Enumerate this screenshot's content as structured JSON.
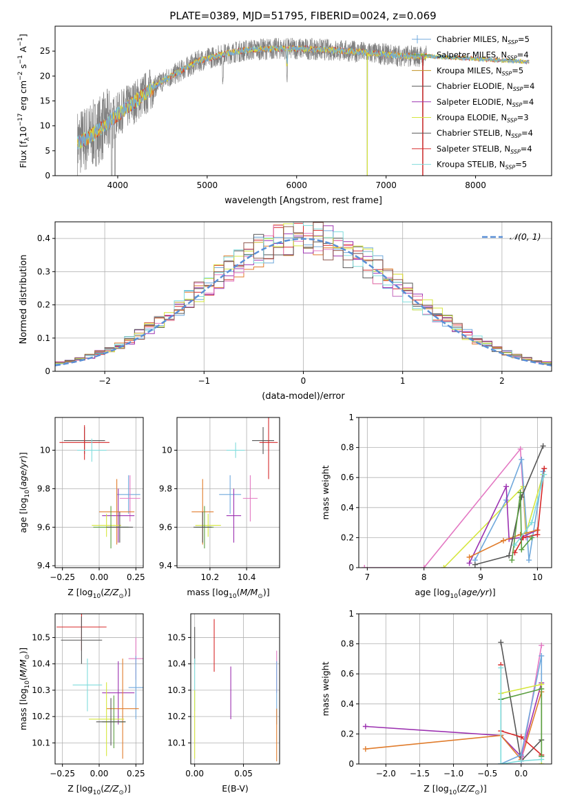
{
  "figure": {
    "title": "PLATE=0389, MJD=51795, FIBERID=0024, z=0.069"
  },
  "colors": {
    "C0": "#6fa8dc",
    "C1": "#e07b2a",
    "C2": "#5a9e3f",
    "C3": "#d62728",
    "C4": "#9b30b0",
    "C5": "#8c564b",
    "C6": "#e377c2",
    "C7": "#555555",
    "C8": "#d5e63c",
    "C9": "#7fdcdc",
    "spectrum_data": "#808080",
    "grid": "#b0b0b0",
    "gauss": "#5a8fd6",
    "legend_miles_chabrier": "#6fa8dc",
    "legend_miles_salpeter": "#5a9e3f",
    "legend_miles_kroupa": "#c09020"
  },
  "chart_data": [
    {
      "id": "spectrum",
      "type": "line",
      "title": "PLATE=0389, MJD=51795, FIBERID=0024, z=0.069",
      "xlabel": "wavelength [Angstrom, rest frame]",
      "ylabel": "Flux [f_λ 10^-17 erg cm^-2 s^-1 A^-1]",
      "xlim": [
        3300,
        8850
      ],
      "ylim": [
        0,
        30
      ],
      "xticks": [
        4000,
        5000,
        6000,
        7000,
        8000
      ],
      "yticks": [
        0,
        5,
        10,
        15,
        20,
        25
      ],
      "grid": false,
      "legend_position": "top-right",
      "legend": [
        {
          "label": "Chabrier MILES, N",
          "sub": "SSP",
          "tail": "=5",
          "color": "#6fa8dc"
        },
        {
          "label": "Salpeter MILES, N",
          "sub": "SSP",
          "tail": "=4",
          "color": "#5a9e3f"
        },
        {
          "label": "Kroupa MILES, N",
          "sub": "SSP",
          "tail": "=5",
          "color": "#c09020"
        },
        {
          "label": "Chabrier ELODIE, N",
          "sub": "SSP",
          "tail": "=4",
          "color": "#555555"
        },
        {
          "label": "Salpeter ELODIE, N",
          "sub": "SSP",
          "tail": "=4",
          "color": "#9b30b0"
        },
        {
          "label": "Kroupa ELODIE, N",
          "sub": "SSP",
          "tail": "=3",
          "color": "#d5e63c"
        },
        {
          "label": "Chabrier STELIB, N",
          "sub": "SSP",
          "tail": "=4",
          "color": "#555555"
        },
        {
          "label": "Salpeter STELIB, N",
          "sub": "SSP",
          "tail": "=4",
          "color": "#d62728"
        },
        {
          "label": "Kroupa STELIB, N",
          "sub": "SSP",
          "tail": "=5",
          "color": "#7fdcdc"
        }
      ],
      "continuum": [
        [
          3550,
          6.5
        ],
        [
          3700,
          8
        ],
        [
          3850,
          10
        ],
        [
          3950,
          11.5
        ],
        [
          4050,
          13
        ],
        [
          4200,
          15
        ],
        [
          4350,
          17
        ],
        [
          4500,
          19
        ],
        [
          4700,
          21
        ],
        [
          4900,
          23
        ],
        [
          5100,
          24
        ],
        [
          5300,
          24.8
        ],
        [
          5500,
          25.3
        ],
        [
          5800,
          25.5
        ],
        [
          6000,
          25.5
        ],
        [
          6300,
          25.3
        ],
        [
          6600,
          25
        ],
        [
          6900,
          24.5
        ],
        [
          7200,
          24
        ],
        [
          7450,
          24
        ]
      ],
      "models_end": [
        7450,
        8600
      ],
      "deep_drops": [
        [
          6790,
          0
        ],
        [
          7410,
          0
        ]
      ]
    },
    {
      "id": "residual_hist",
      "type": "bar",
      "xlabel": "(data-model)/error",
      "ylabel": "Normed distribution",
      "xlim": [
        -2.5,
        2.5
      ],
      "ylim": [
        0,
        0.45
      ],
      "xticks": [
        -2,
        -1,
        0,
        1,
        2
      ],
      "xtick_labels": [
        "−2",
        "−1",
        "0",
        "1",
        "2"
      ],
      "yticks": [
        0.0,
        0.1,
        0.2,
        0.3,
        0.4
      ],
      "grid": true,
      "bin_width": 0.1,
      "legend_position": "top-right",
      "legend": [
        {
          "label": "𝒩(0, 1)",
          "style": "dashed",
          "color": "#5a8fd6"
        }
      ],
      "gaussian": {
        "mu": 0,
        "sigma": 1
      }
    },
    {
      "id": "age_vs_Z",
      "type": "scatter",
      "xlabel": "Z [log10(Z/Z☉)]",
      "ylabel": "age  [log10(age/yr)]",
      "xlim": [
        -0.3,
        0.3
      ],
      "ylim": [
        9.39,
        10.17
      ],
      "xticks": [
        -0.25,
        0.0,
        0.25
      ],
      "xtick_labels": [
        "−0.25",
        "0.00",
        "0.25"
      ],
      "yticks": [
        9.4,
        9.6,
        9.8,
        10.0
      ],
      "grid": true,
      "errorbars": [
        {
          "x": -0.1,
          "y": 10.05,
          "xerr": 0.14,
          "yerr": 0.07,
          "color": "#555555"
        },
        {
          "x": -0.1,
          "y": 10.04,
          "xerr": 0.17,
          "yerr": 0.09,
          "color": "#d62728"
        },
        {
          "x": -0.05,
          "y": 10.0,
          "xerr": 0.1,
          "yerr": 0.06,
          "color": "#7fdcdc"
        },
        {
          "x": 0.2,
          "y": 9.77,
          "xerr": 0.08,
          "yerr": 0.1,
          "color": "#6fa8dc"
        },
        {
          "x": 0.21,
          "y": 9.75,
          "xerr": 0.07,
          "yerr": 0.12,
          "color": "#e377c2"
        },
        {
          "x": 0.13,
          "y": 9.66,
          "xerr": 0.11,
          "yerr": 0.14,
          "color": "#9b30b0"
        },
        {
          "x": 0.12,
          "y": 9.68,
          "xerr": 0.12,
          "yerr": 0.17,
          "color": "#e07b2a"
        },
        {
          "x": 0.05,
          "y": 9.61,
          "xerr": 0.1,
          "yerr": 0.06,
          "color": "#d5e63c"
        },
        {
          "x": 0.08,
          "y": 9.6,
          "xerr": 0.12,
          "yerr": 0.11,
          "color": "#5a9e3f"
        },
        {
          "x": 0.14,
          "y": 9.6,
          "xerr": 0.09,
          "yerr": 0.08,
          "color": "#555555"
        }
      ]
    },
    {
      "id": "age_vs_mass",
      "type": "scatter",
      "xlabel": "mass [log10(M/M☉)]",
      "xlim": [
        10.02,
        10.58
      ],
      "ylim": [
        9.39,
        10.17
      ],
      "xticks": [
        10.2,
        10.4
      ],
      "yticks": [
        9.4,
        9.6,
        9.8,
        10.0
      ],
      "grid": true,
      "errorbars": [
        {
          "x": 10.49,
          "y": 10.05,
          "xerr": 0.06,
          "yerr": 0.07,
          "color": "#555555"
        },
        {
          "x": 10.52,
          "y": 10.04,
          "xerr": 0.05,
          "yerr": 0.19,
          "color": "#d62728"
        },
        {
          "x": 10.34,
          "y": 10.0,
          "xerr": 0.05,
          "yerr": 0.04,
          "color": "#7fdcdc"
        },
        {
          "x": 10.31,
          "y": 9.77,
          "xerr": 0.06,
          "yerr": 0.1,
          "color": "#6fa8dc"
        },
        {
          "x": 10.42,
          "y": 9.75,
          "xerr": 0.04,
          "yerr": 0.12,
          "color": "#e377c2"
        },
        {
          "x": 10.33,
          "y": 9.66,
          "xerr": 0.04,
          "yerr": 0.14,
          "color": "#9b30b0"
        },
        {
          "x": 10.16,
          "y": 9.68,
          "xerr": 0.06,
          "yerr": 0.17,
          "color": "#e07b2a"
        },
        {
          "x": 10.19,
          "y": 9.61,
          "xerr": 0.07,
          "yerr": 0.06,
          "color": "#d5e63c"
        },
        {
          "x": 10.17,
          "y": 9.6,
          "xerr": 0.05,
          "yerr": 0.11,
          "color": "#5a9e3f"
        },
        {
          "x": 10.16,
          "y": 9.6,
          "xerr": 0.05,
          "yerr": 0.08,
          "color": "#555555"
        }
      ]
    },
    {
      "id": "weight_vs_age",
      "type": "line",
      "xlabel": "age  [log10(age/yr)]",
      "ylabel": "mass weight",
      "xlim": [
        6.85,
        10.25
      ],
      "ylim": [
        0,
        1
      ],
      "xticks": [
        7,
        8,
        9,
        10
      ],
      "yticks": [
        0.0,
        0.2,
        0.4,
        0.6,
        0.8,
        1.0
      ],
      "grid": true,
      "series": [
        {
          "color": "#e377c2",
          "points": [
            [
              6.95,
              0.0
            ],
            [
              8.0,
              0.0
            ],
            [
              9.7,
              0.79
            ],
            [
              9.8,
              0.2
            ]
          ]
        },
        {
          "color": "#d5e63c",
          "points": [
            [
              8.35,
              0.0
            ],
            [
              9.75,
              0.54
            ],
            [
              9.8,
              0.23
            ],
            [
              10.1,
              0.62
            ]
          ]
        },
        {
          "color": "#6fa8dc",
          "points": [
            [
              8.9,
              0.05
            ],
            [
              9.45,
              0.45
            ],
            [
              9.72,
              0.72
            ],
            [
              9.85,
              0.05
            ],
            [
              10.1,
              0.64
            ]
          ]
        },
        {
          "color": "#9b30b0",
          "points": [
            [
              8.8,
              0.03
            ],
            [
              9.45,
              0.54
            ],
            [
              9.5,
              0.19
            ],
            [
              9.7,
              0.2
            ],
            [
              10.0,
              0.25
            ]
          ]
        },
        {
          "color": "#e07b2a",
          "points": [
            [
              8.8,
              0.07
            ],
            [
              9.4,
              0.18
            ],
            [
              9.7,
              0.22
            ],
            [
              10.0,
              0.25
            ]
          ]
        },
        {
          "color": "#555555",
          "points": [
            [
              8.9,
              0.02
            ],
            [
              9.5,
              0.08
            ],
            [
              9.72,
              0.47
            ],
            [
              10.1,
              0.81
            ]
          ]
        },
        {
          "color": "#d62728",
          "points": [
            [
              9.6,
              0.1
            ],
            [
              9.75,
              0.2
            ],
            [
              10.0,
              0.22
            ],
            [
              10.12,
              0.66
            ]
          ]
        },
        {
          "color": "#5a9e3f",
          "points": [
            [
              9.55,
              0.05
            ],
            [
              9.7,
              0.5
            ],
            [
              9.72,
              0.12
            ],
            [
              9.9,
              0.2
            ]
          ]
        },
        {
          "color": "#7fdcdc",
          "points": [
            [
              9.6,
              0.15
            ],
            [
              9.9,
              0.3
            ],
            [
              10.12,
              0.62
            ]
          ]
        }
      ]
    },
    {
      "id": "mass_vs_Z",
      "type": "scatter",
      "xlabel": "Z [log10(Z/Z☉)]",
      "ylabel": "mass [log10(M/M☉)]",
      "xlim": [
        -0.3,
        0.3
      ],
      "ylim": [
        10.02,
        10.59
      ],
      "xticks": [
        -0.25,
        0.0,
        0.25
      ],
      "xtick_labels": [
        "−0.25",
        "0.00",
        "0.25"
      ],
      "yticks": [
        10.1,
        10.2,
        10.3,
        10.4,
        10.5
      ],
      "grid": true,
      "errorbars": [
        {
          "x": -0.12,
          "y": 10.54,
          "xerr": 0.17,
          "yerr": 0.09,
          "color": "#d62728"
        },
        {
          "x": -0.12,
          "y": 10.49,
          "xerr": 0.14,
          "yerr": 0.09,
          "color": "#555555"
        },
        {
          "x": -0.08,
          "y": 10.32,
          "xerr": 0.1,
          "yerr": 0.1,
          "color": "#7fdcdc"
        },
        {
          "x": 0.25,
          "y": 10.42,
          "xerr": 0.05,
          "yerr": 0.08,
          "color": "#e377c2"
        },
        {
          "x": 0.25,
          "y": 10.31,
          "xerr": 0.05,
          "yerr": 0.12,
          "color": "#6fa8dc"
        },
        {
          "x": 0.13,
          "y": 10.29,
          "xerr": 0.11,
          "yerr": 0.12,
          "color": "#9b30b0"
        },
        {
          "x": 0.16,
          "y": 10.23,
          "xerr": 0.11,
          "yerr": 0.19,
          "color": "#e07b2a"
        },
        {
          "x": 0.05,
          "y": 10.19,
          "xerr": 0.12,
          "yerr": 0.14,
          "color": "#d5e63c"
        },
        {
          "x": 0.1,
          "y": 10.18,
          "xerr": 0.08,
          "yerr": 0.1,
          "color": "#5a9e3f"
        },
        {
          "x": 0.08,
          "y": 10.18,
          "xerr": 0.1,
          "yerr": 0.09,
          "color": "#555555"
        }
      ]
    },
    {
      "id": "mass_vs_ebv",
      "type": "scatter",
      "xlabel": "E(B-V)",
      "xlim": [
        -0.004,
        0.087
      ],
      "ylim": [
        10.02,
        10.59
      ],
      "xticks": [
        0.0,
        0.05
      ],
      "xtick_labels": [
        "0.00",
        "0.05"
      ],
      "yticks": [
        10.1,
        10.2,
        10.3,
        10.4,
        10.5
      ],
      "grid": true,
      "errorbars": [
        {
          "x": 0.0,
          "y": 10.47,
          "xerr": 0,
          "yerr": 0.07,
          "color": "#555555"
        },
        {
          "x": 0.0,
          "y": 10.32,
          "xerr": 0,
          "yerr": 0.1,
          "color": "#7fdcdc"
        },
        {
          "x": 0.0,
          "y": 10.17,
          "xerr": 0,
          "yerr": 0.13,
          "color": "#d5e63c"
        },
        {
          "x": 0.02,
          "y": 10.47,
          "xerr": 0,
          "yerr": 0.1,
          "color": "#d62728"
        },
        {
          "x": 0.037,
          "y": 10.29,
          "xerr": 0,
          "yerr": 0.1,
          "color": "#9b30b0"
        },
        {
          "x": 0.084,
          "y": 10.37,
          "xerr": 0,
          "yerr": 0.08,
          "color": "#e377c2"
        },
        {
          "x": 0.084,
          "y": 10.29,
          "xerr": 0,
          "yerr": 0.12,
          "color": "#6fa8dc"
        },
        {
          "x": 0.084,
          "y": 10.13,
          "xerr": 0,
          "yerr": 0.1,
          "color": "#e07b2a"
        }
      ]
    },
    {
      "id": "weight_vs_Z",
      "type": "line",
      "xlabel": "Z [log10(Z/Z☉)]",
      "ylabel": "mass weight",
      "xlim": [
        -2.4,
        0.45
      ],
      "ylim": [
        0,
        1
      ],
      "xticks": [
        -2.0,
        -1.5,
        -1.0,
        -0.5,
        0.0
      ],
      "xtick_labels": [
        "−2.0",
        "−1.5",
        "−1.0",
        "−0.5",
        "0.0"
      ],
      "yticks": [
        0.0,
        0.2,
        0.4,
        0.6,
        0.8,
        1.0
      ],
      "grid": true,
      "series": [
        {
          "color": "#9b30b0",
          "points": [
            [
              -2.3,
              0.25
            ],
            [
              -0.3,
              0.19
            ],
            [
              0.0,
              0.05
            ],
            [
              0.3,
              0.54
            ]
          ]
        },
        {
          "color": "#e07b2a",
          "points": [
            [
              -2.3,
              0.1
            ],
            [
              -0.3,
              0.19
            ],
            [
              0.0,
              0.03
            ],
            [
              0.3,
              0.48
            ]
          ]
        },
        {
          "color": "#555555",
          "points": [
            [
              -0.3,
              0.81
            ],
            [
              0.0,
              0.02
            ],
            [
              0.3,
              0.16
            ]
          ]
        },
        {
          "color": "#d62728",
          "points": [
            [
              -0.3,
              0.66
            ],
            [
              -0.3,
              0.22
            ],
            [
              0.0,
              0.18
            ],
            [
              0.3,
              0.06
            ]
          ]
        },
        {
          "color": "#e377c2",
          "points": [
            [
              -0.3,
              0.0
            ],
            [
              0.0,
              0.0
            ],
            [
              0.3,
              0.79
            ]
          ]
        },
        {
          "color": "#6fa8dc",
          "points": [
            [
              -0.3,
              0.0
            ],
            [
              0.0,
              0.06
            ],
            [
              0.3,
              0.72
            ],
            [
              0.3,
              0.05
            ]
          ]
        },
        {
          "color": "#d5e63c",
          "points": [
            [
              -0.3,
              0.47
            ],
            [
              0.3,
              0.53
            ],
            [
              0.3,
              0.0
            ]
          ]
        },
        {
          "color": "#5a9e3f",
          "points": [
            [
              -0.3,
              0.43
            ],
            [
              0.3,
              0.5
            ],
            [
              0.3,
              0.05
            ]
          ]
        },
        {
          "color": "#7fdcdc",
          "points": [
            [
              -0.3,
              0.64
            ],
            [
              -0.3,
              0.0
            ],
            [
              0.0,
              0.02
            ],
            [
              0.3,
              0.03
            ]
          ]
        }
      ]
    }
  ]
}
